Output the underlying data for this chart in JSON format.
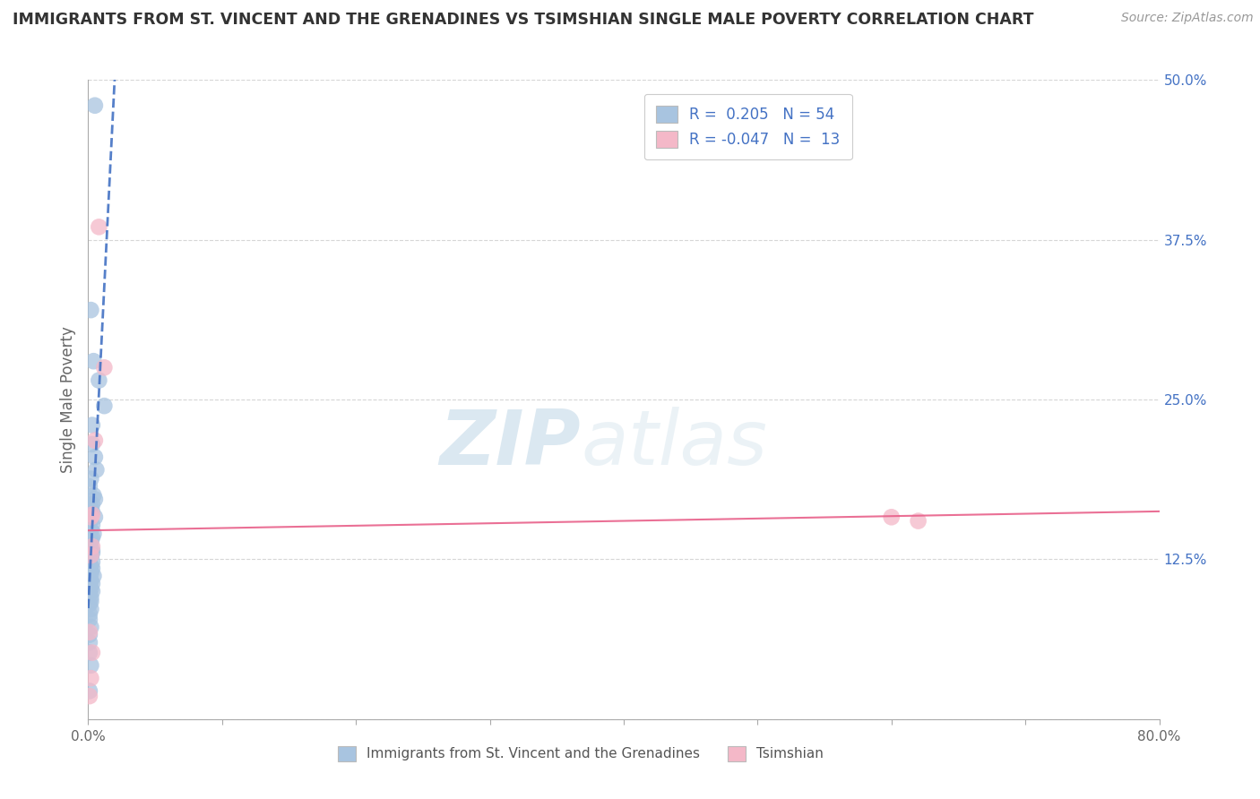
{
  "title": "IMMIGRANTS FROM ST. VINCENT AND THE GRENADINES VS TSIMSHIAN SINGLE MALE POVERTY CORRELATION CHART",
  "source": "Source: ZipAtlas.com",
  "xlabel": "",
  "ylabel": "Single Male Poverty",
  "xlim": [
    0,
    0.8
  ],
  "ylim": [
    0,
    0.5
  ],
  "xticks": [
    0.0,
    0.1,
    0.2,
    0.3,
    0.4,
    0.5,
    0.6,
    0.7,
    0.8
  ],
  "xticklabels": [
    "0.0%",
    "",
    "",
    "",
    "",
    "",
    "",
    "",
    "80.0%"
  ],
  "yticks": [
    0.0,
    0.125,
    0.25,
    0.375,
    0.5
  ],
  "yticklabels": [
    "",
    "12.5%",
    "25.0%",
    "37.5%",
    "50.0%"
  ],
  "blue_color": "#a8c4e0",
  "blue_line_color": "#4472c4",
  "pink_color": "#f4b8c8",
  "pink_line_color": "#e8608a",
  "legend_R1": "0.205",
  "legend_N1": "54",
  "legend_R2": "-0.047",
  "legend_N2": "13",
  "legend_label1": "Immigrants from St. Vincent and the Grenadines",
  "legend_label2": "Tsimshian",
  "watermark_zip": "ZIP",
  "watermark_atlas": "atlas",
  "blue_scatter_x": [
    0.005,
    0.002,
    0.004,
    0.008,
    0.012,
    0.003,
    0.003,
    0.005,
    0.006,
    0.002,
    0.001,
    0.004,
    0.005,
    0.003,
    0.002,
    0.003,
    0.005,
    0.001,
    0.003,
    0.002,
    0.004,
    0.003,
    0.002,
    0.002,
    0.001,
    0.003,
    0.003,
    0.002,
    0.001,
    0.003,
    0.002,
    0.003,
    0.002,
    0.002,
    0.004,
    0.001,
    0.002,
    0.003,
    0.001,
    0.002,
    0.003,
    0.001,
    0.002,
    0.002,
    0.001,
    0.002,
    0.001,
    0.001,
    0.002,
    0.001,
    0.001,
    0.001,
    0.002,
    0.001
  ],
  "blue_scatter_y": [
    0.48,
    0.32,
    0.28,
    0.265,
    0.245,
    0.23,
    0.215,
    0.205,
    0.195,
    0.188,
    0.182,
    0.175,
    0.172,
    0.168,
    0.165,
    0.162,
    0.158,
    0.155,
    0.152,
    0.148,
    0.145,
    0.142,
    0.14,
    0.138,
    0.135,
    0.132,
    0.13,
    0.128,
    0.126,
    0.123,
    0.12,
    0.118,
    0.116,
    0.114,
    0.112,
    0.11,
    0.108,
    0.106,
    0.104,
    0.102,
    0.1,
    0.098,
    0.095,
    0.092,
    0.09,
    0.086,
    0.082,
    0.078,
    0.072,
    0.066,
    0.06,
    0.052,
    0.042,
    0.022
  ],
  "pink_scatter_x": [
    0.008,
    0.012,
    0.005,
    0.003,
    0.002,
    0.003,
    0.6,
    0.62,
    0.002,
    0.001,
    0.003,
    0.002,
    0.001
  ],
  "pink_scatter_y": [
    0.385,
    0.275,
    0.218,
    0.16,
    0.158,
    0.135,
    0.158,
    0.155,
    0.128,
    0.068,
    0.052,
    0.032,
    0.018
  ]
}
